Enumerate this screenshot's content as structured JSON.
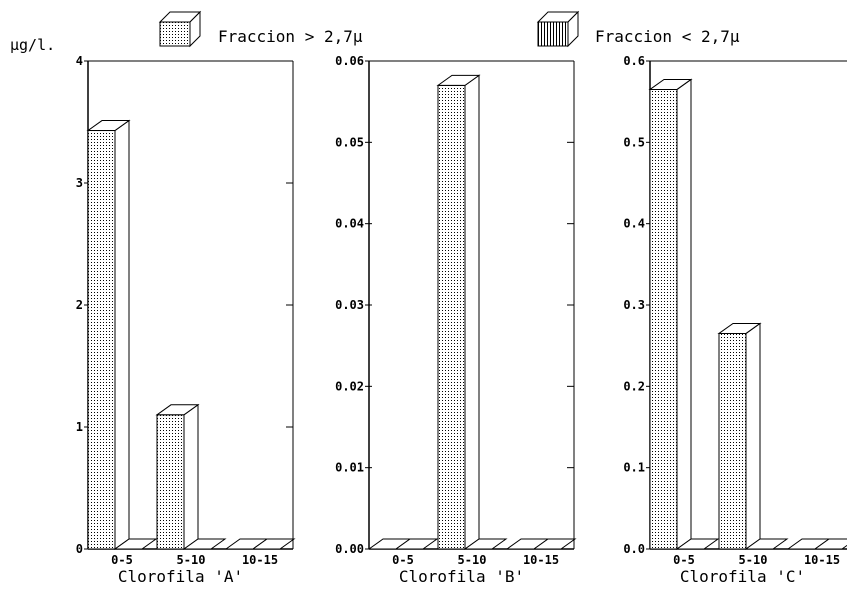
{
  "legend": [
    {
      "label": "Fraccion > 2,7µ",
      "pattern": "dots"
    },
    {
      "label": "Fraccion < 2,7µ",
      "pattern": "vlines"
    }
  ],
  "y_unit": "µg/l.",
  "chart_data": [
    {
      "type": "bar",
      "xlabel": "Clorofila 'A'",
      "categories": [
        "0-5",
        "5-10",
        "10-15"
      ],
      "ylim": [
        0,
        4
      ],
      "yticks": [
        "0",
        "1",
        "2",
        "3",
        "4"
      ],
      "series": [
        {
          "name": "Fraccion > 2,7µ",
          "values": [
            3.43,
            1.1,
            0
          ]
        },
        {
          "name": "Fraccion < 2,7µ",
          "values": [
            0,
            0,
            0
          ]
        }
      ]
    },
    {
      "type": "bar",
      "xlabel": "Clorofila 'B'",
      "categories": [
        "0-5",
        "5-10",
        "10-15"
      ],
      "ylim": [
        0,
        0.06
      ],
      "yticks": [
        "0.00",
        "0.01",
        "0.02",
        "0.03",
        "0.04",
        "0.05",
        "0.06"
      ],
      "series": [
        {
          "name": "Fraccion > 2,7µ",
          "values": [
            0,
            0.057,
            0
          ]
        },
        {
          "name": "Fraccion < 2,7µ",
          "values": [
            0,
            0,
            0
          ]
        }
      ]
    },
    {
      "type": "bar",
      "xlabel": "Clorofila 'C'",
      "categories": [
        "0-5",
        "5-10",
        "10-15"
      ],
      "ylim": [
        0,
        0.6
      ],
      "yticks": [
        "0.0",
        "0.1",
        "0.2",
        "0.3",
        "0.4",
        "0.5",
        "0.6"
      ],
      "series": [
        {
          "name": "Fraccion > 2,7µ",
          "values": [
            0.565,
            0.265,
            0
          ]
        },
        {
          "name": "Fraccion < 2,7µ",
          "values": [
            0,
            0,
            0
          ]
        }
      ]
    }
  ]
}
